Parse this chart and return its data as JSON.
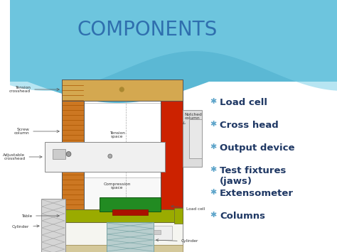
{
  "title": "COMPONENTS",
  "title_color": "#2F6FAE",
  "title_fontsize": 20,
  "bullet_items": [
    "Load cell",
    "Cross head",
    "Output device",
    "Test fixtures\n(jaws)",
    "Extensometer",
    "Columns"
  ],
  "bullet_color": "#1F3864",
  "bullet_asterisk_color": "#5BA3C9",
  "bullet_fontsize": 9.5,
  "bg_blue": "#5BB8D4",
  "bg_white": "#FFFFFF",
  "wave1_color": "#FFFFFF",
  "wave2_color": "#A8D8EA",
  "machine": {
    "frame_color": "#D4A850",
    "left_col_color": "#CC7722",
    "right_col_color": "#CC2200",
    "table_color": "#9AAB00",
    "green_block_color": "#228B22",
    "crosshead_color": "#F0F0F0",
    "notch_color": "#DDDDDD",
    "base_color": "#F0EDD8",
    "cylinder_color": "#B8CECE",
    "hatch_color": "#909090",
    "small_box_color": "#E8E8E8"
  }
}
